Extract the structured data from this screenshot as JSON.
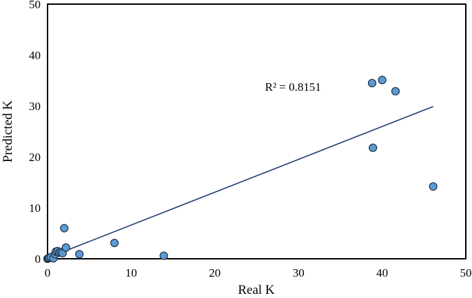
{
  "chart_data": {
    "type": "scatter",
    "title": "",
    "xlabel": "Real K",
    "ylabel": "Predicted K",
    "xlim": [
      0,
      50
    ],
    "ylim": [
      0,
      50
    ],
    "xticks": [
      0,
      10,
      20,
      30,
      40,
      50
    ],
    "yticks": [
      0,
      10,
      20,
      30,
      40,
      50
    ],
    "grid": false,
    "legend": "none",
    "series": [
      {
        "marker_color": "#5b9bd5",
        "marker_edge": "#1f2f3f",
        "points": [
          {
            "x": 0.0,
            "y": 0.0
          },
          {
            "x": 0.1,
            "y": 0.1
          },
          {
            "x": 0.2,
            "y": 0.2
          },
          {
            "x": 0.4,
            "y": 0.3
          },
          {
            "x": 0.7,
            "y": 0.1
          },
          {
            "x": 0.9,
            "y": 0.9
          },
          {
            "x": 1.0,
            "y": 1.4
          },
          {
            "x": 1.2,
            "y": 1.5
          },
          {
            "x": 1.4,
            "y": 1.2
          },
          {
            "x": 1.6,
            "y": 1.3
          },
          {
            "x": 1.8,
            "y": 1.1
          },
          {
            "x": 2.0,
            "y": 6.0
          },
          {
            "x": 2.2,
            "y": 2.2
          },
          {
            "x": 3.8,
            "y": 0.9
          },
          {
            "x": 8.0,
            "y": 3.1
          },
          {
            "x": 13.9,
            "y": 0.6
          },
          {
            "x": 38.8,
            "y": 34.5
          },
          {
            "x": 38.9,
            "y": 21.8
          },
          {
            "x": 40.0,
            "y": 35.1
          },
          {
            "x": 41.6,
            "y": 32.9
          },
          {
            "x": 46.1,
            "y": 14.2
          }
        ]
      }
    ],
    "trendline": {
      "type": "linear",
      "color": "#1f3b6f",
      "x": [
        0.2,
        46.1
      ],
      "y": [
        0.3,
        29.9
      ]
    },
    "annotations": [
      {
        "text": "R² = 0.8151",
        "x": 26.0,
        "y": 33.0
      }
    ]
  }
}
